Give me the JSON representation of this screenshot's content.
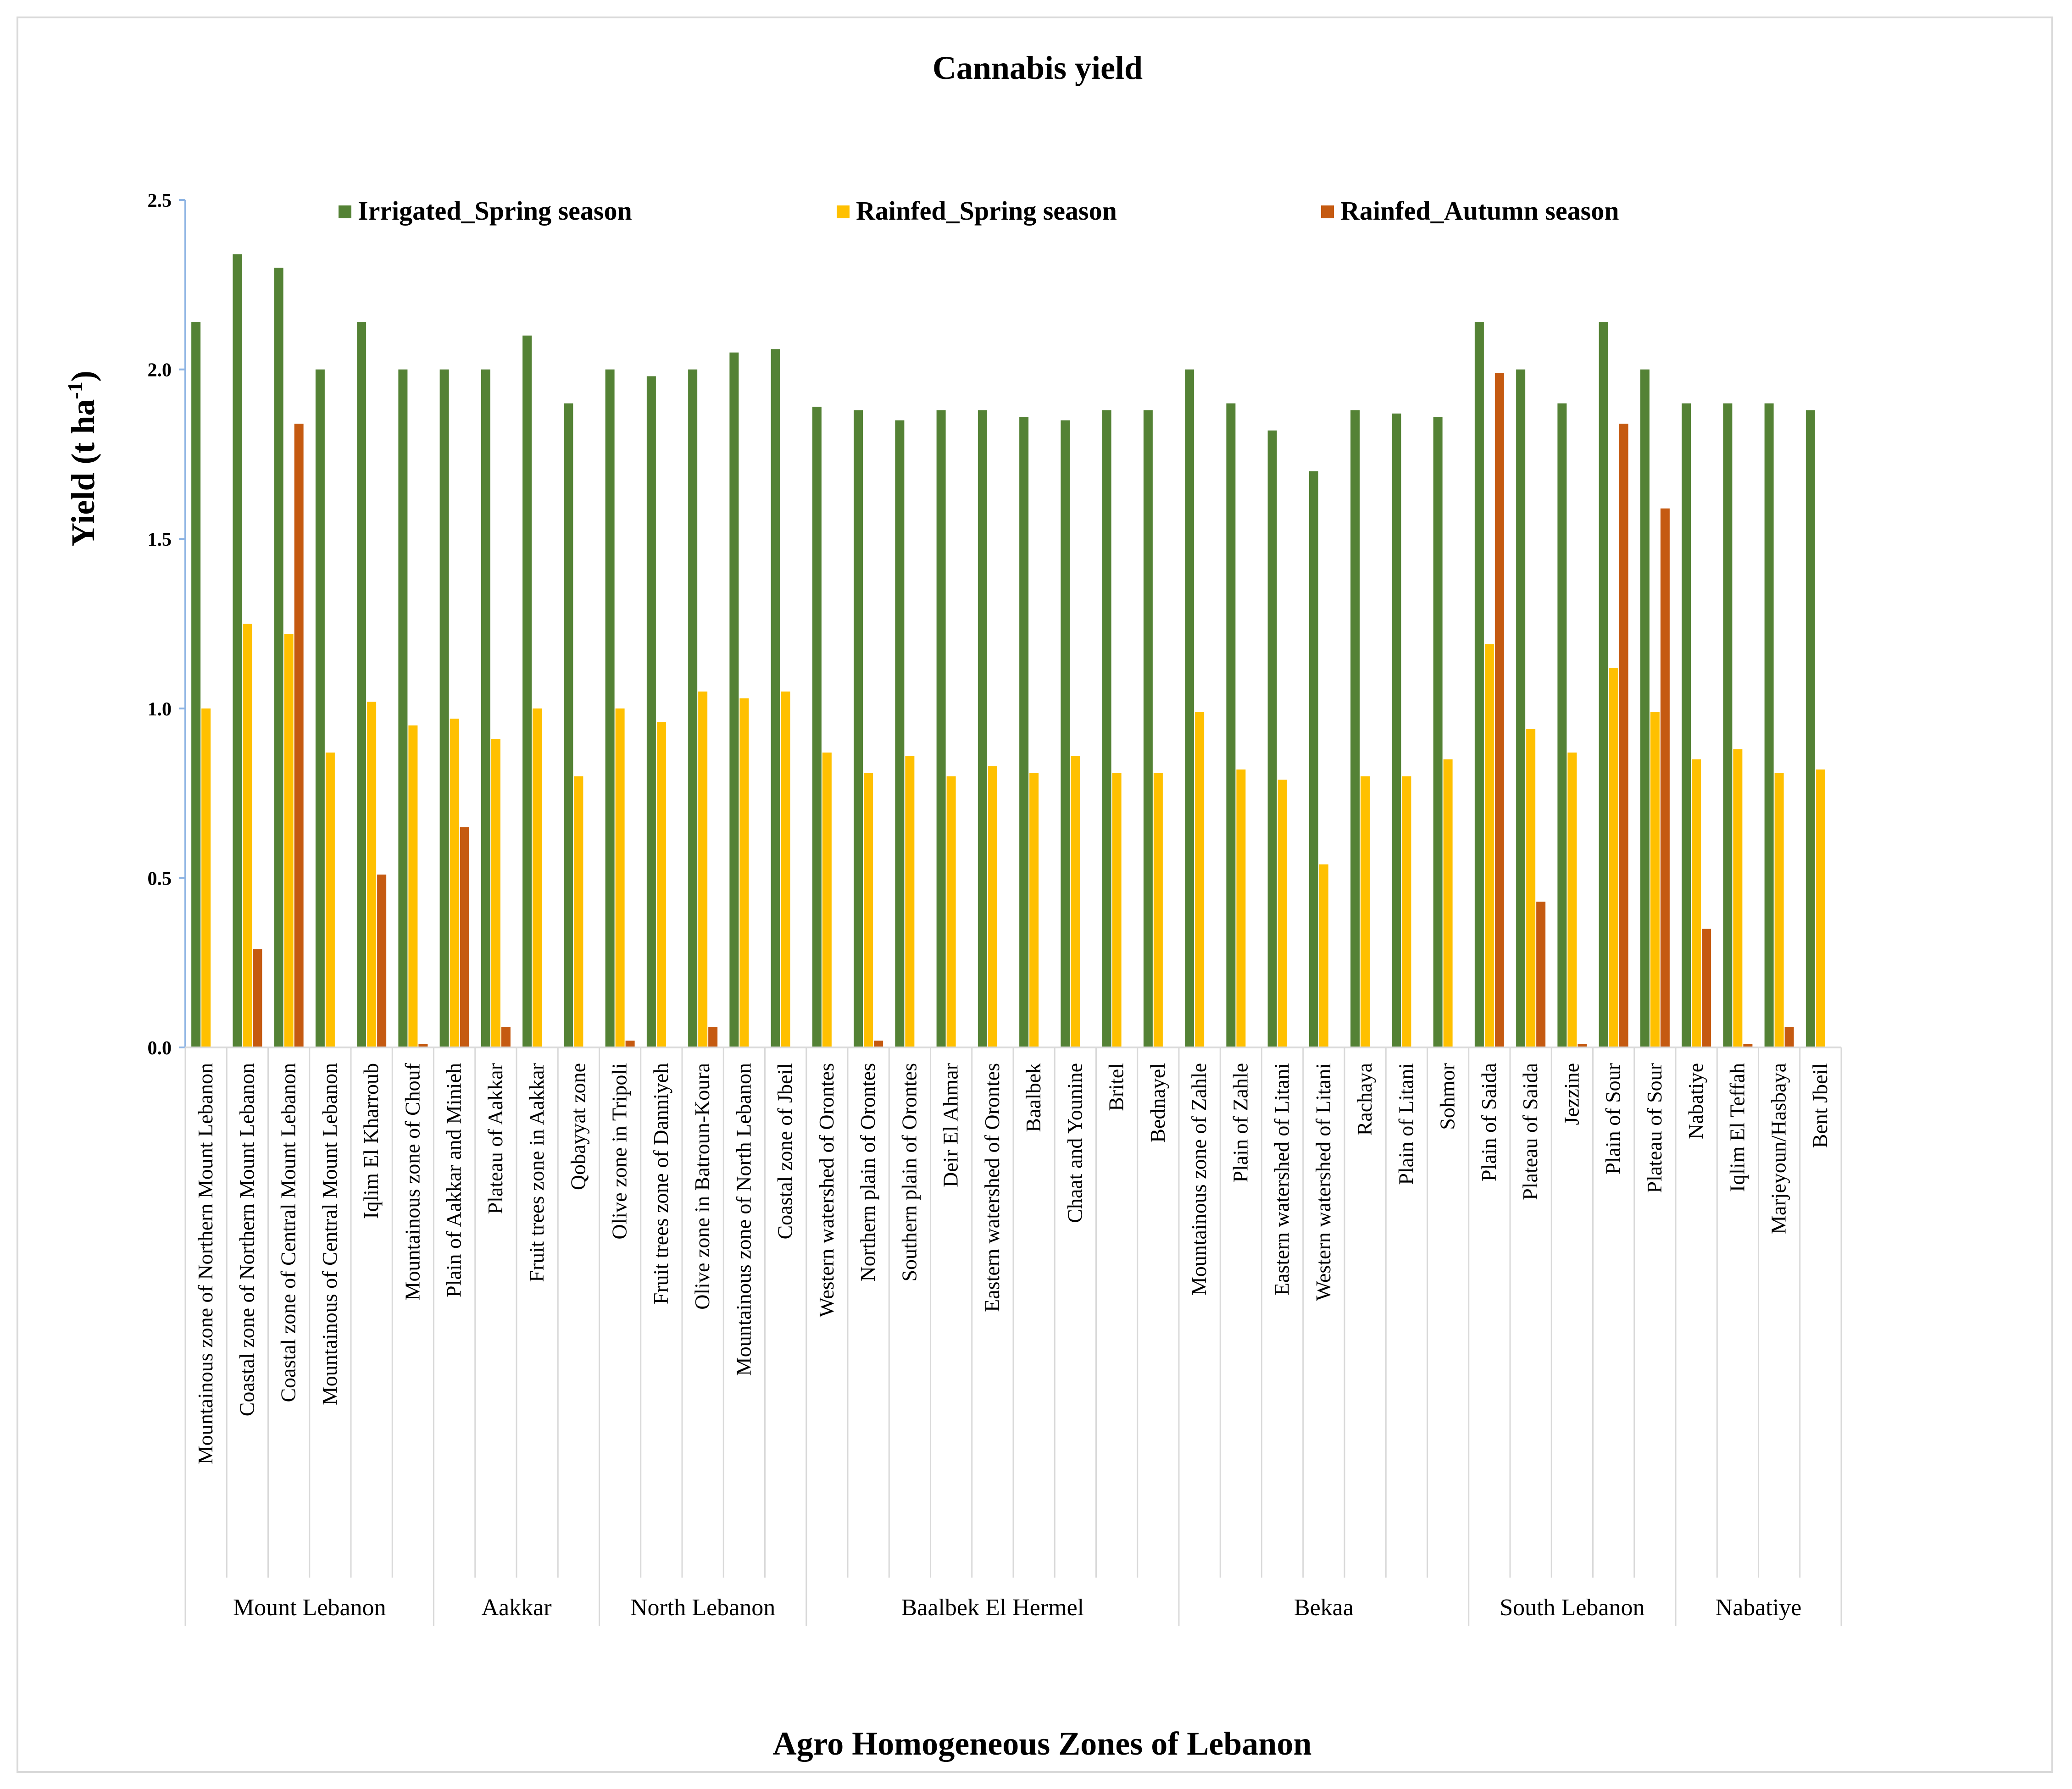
{
  "chart_data": {
    "type": "bar",
    "title": "Cannabis yield",
    "xlabel": "Agro Homogeneous Zones of Lebanon",
    "ylabel": "Yield (t ha",
    "ylabel_superscript": "-1",
    "ylabel_suffix": ")",
    "ylim": [
      0,
      2.5
    ],
    "yticks": [
      "0.0",
      "0.5",
      "1.0",
      "1.5",
      "2.0",
      "2.5"
    ],
    "ytick_values": [
      0,
      0.5,
      1.0,
      1.5,
      2.0,
      2.5
    ],
    "grid": false,
    "legend_position": "top",
    "categories": [
      "Mountainous zone of Northern Mount Lebanon",
      "Coastal zone of Northern Mount Lebanon",
      "Coastal zone of Central Mount Lebanon",
      "Mountainous of Central Mount Lebanon",
      "Iqlim El Kharroub",
      "Mountainous zone of Chouf",
      "Plain of Aakkar and Minieh",
      "Plateau of Aakkar",
      "Fruit trees zone in Aakkar",
      "Qobayyat zone",
      "Olive zone in Tripoli",
      "Fruit trees zone of Danniyeh",
      "Olive zone in Batroun-Koura",
      "Mountainous zone of North Lebanon",
      "Coastal zone of Jbeil",
      "Western watershed of Orontes",
      "Northern plain of Orontes",
      "Southern plain of Orontes",
      "Deir El Ahmar",
      "Eastern watershed of Orontes",
      "Baalbek",
      "Chaat and Younine",
      "Britel",
      "Bednayel",
      "Mountainous zone of Zahle",
      "Plain of Zahle",
      "Eastern watershed of Litani",
      "Western watershed of Litani",
      "Rachaya",
      "Plain of Litani",
      "Sohmor",
      "Plain of Saida",
      "Plateau of Saida",
      "Jezzine",
      "Plain of Sour",
      "Plateau of Sour",
      "Nabatiye",
      "Iqlim El Teffah",
      "Marjeyoun/Hasbaya",
      "Bent Jbeil"
    ],
    "groups": [
      {
        "name": "Mount Lebanon",
        "count": 6
      },
      {
        "name": "Aakkar",
        "count": 4
      },
      {
        "name": "North Lebanon",
        "count": 5
      },
      {
        "name": "Baalbek El Hermel",
        "count": 9
      },
      {
        "name": "Bekaa",
        "count": 7
      },
      {
        "name": "South Lebanon",
        "count": 5
      },
      {
        "name": "Nabatiye",
        "count": 4
      }
    ],
    "series": [
      {
        "name": "Irrigated_Spring season",
        "color": "#548235",
        "values": [
          2.14,
          2.34,
          2.3,
          2.0,
          2.14,
          2.0,
          2.0,
          2.0,
          2.1,
          1.9,
          2.0,
          1.98,
          2.0,
          2.05,
          2.06,
          1.89,
          1.88,
          1.85,
          1.88,
          1.88,
          1.86,
          1.85,
          1.88,
          1.88,
          2.0,
          1.9,
          1.82,
          1.7,
          1.88,
          1.87,
          1.86,
          2.14,
          2.0,
          1.9,
          2.14,
          2.0,
          1.9,
          1.9,
          1.9,
          1.88
        ]
      },
      {
        "name": "Rainfed_Spring season",
        "color": "#ffc000",
        "values": [
          1.0,
          1.25,
          1.22,
          0.87,
          1.02,
          0.95,
          0.97,
          0.91,
          1.0,
          0.8,
          1.0,
          0.96,
          1.05,
          1.03,
          1.05,
          0.87,
          0.81,
          0.86,
          0.8,
          0.83,
          0.81,
          0.86,
          0.81,
          0.81,
          0.99,
          0.82,
          0.79,
          0.54,
          0.8,
          0.8,
          0.85,
          1.19,
          0.94,
          0.87,
          1.12,
          0.99,
          0.85,
          0.88,
          0.81,
          0.82
        ]
      },
      {
        "name": "Rainfed_Autumn season",
        "color": "#c55a11",
        "values": [
          0,
          0.29,
          1.84,
          0,
          0.51,
          0.01,
          0.65,
          0.06,
          0,
          0,
          0.02,
          0,
          0.06,
          0,
          0,
          0,
          0.02,
          0,
          0,
          0,
          0,
          0,
          0,
          0,
          0,
          0,
          0,
          0,
          0,
          0,
          0,
          1.99,
          0.43,
          0.01,
          1.84,
          1.59,
          0.35,
          0.01,
          0.06,
          0
        ]
      }
    ]
  }
}
